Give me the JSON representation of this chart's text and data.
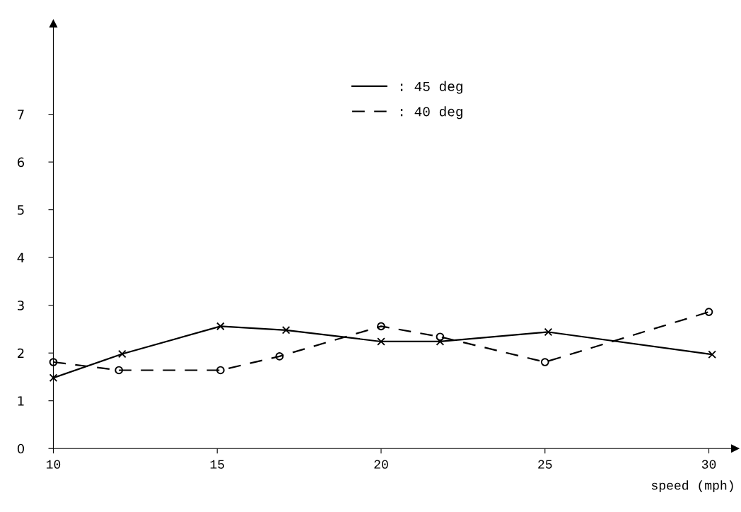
{
  "chart_data": {
    "type": "line",
    "xlabel": "speed (mph)",
    "x": [
      10,
      12.1,
      15.1,
      17.1,
      20,
      21.8,
      25.1,
      30.1
    ],
    "series": [
      {
        "name": ": 45 deg",
        "color": "#000000",
        "line_style": "solid",
        "marker": "cross",
        "values": [
          1.48,
          1.98,
          2.56,
          2.48,
          2.24,
          2.24,
          2.44,
          1.97
        ]
      },
      {
        "name": ": 40 deg",
        "color": "#000000",
        "line_style": "dashed",
        "marker": "circle",
        "x": [
          10,
          12,
          15.1,
          16.9,
          20,
          21.8,
          25,
          30
        ],
        "values": [
          1.81,
          1.64,
          1.64,
          1.93,
          2.56,
          2.34,
          1.81,
          2.86
        ]
      }
    ],
    "xlim": [
      10,
      30.8
    ],
    "ylim": [
      0,
      8.9
    ],
    "xticks": [
      10,
      15,
      20,
      25,
      30
    ],
    "yticks": [
      0,
      1,
      2,
      3,
      4,
      5,
      6,
      7
    ],
    "grid": false,
    "legend": "top"
  }
}
